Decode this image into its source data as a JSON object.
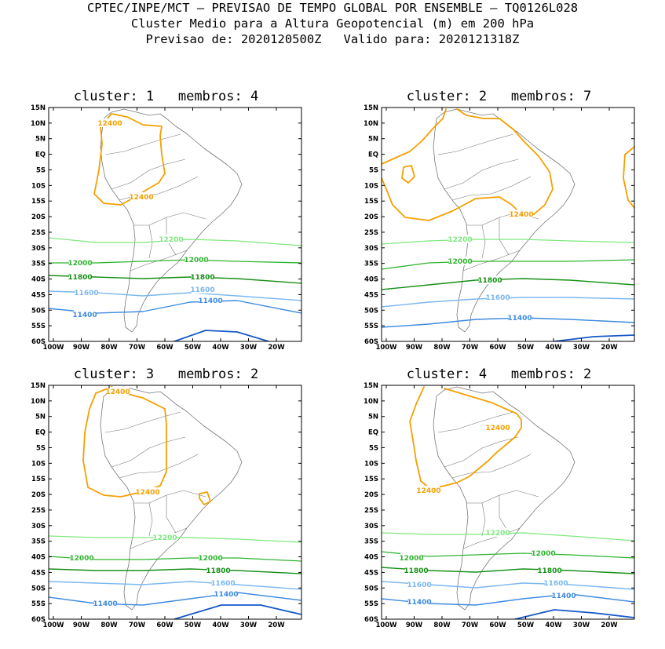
{
  "header": {
    "line1": "CPTEC/INPE/MCT — PREVISAO DE TEMPO GLOBAL POR ENSEMBLE — TQ0126L028",
    "line2": "Cluster Medio para a Altura Geopotencial (m) em 200 hPa",
    "line3": "Previsao de: 2020120500Z   Valido para: 2020121318Z"
  },
  "axes": {
    "lat_labels": [
      "15N",
      "10N",
      "5N",
      "EQ",
      "5S",
      "10S",
      "15S",
      "20S",
      "25S",
      "30S",
      "35S",
      "40S",
      "45S",
      "50S",
      "55S",
      "60S"
    ],
    "lon_labels": [
      "100W",
      "90W",
      "80W",
      "70W",
      "60W",
      "50W",
      "40W",
      "30W",
      "20W"
    ]
  },
  "colors": {
    "c12400": "#f5a000",
    "c12200": "#7ee87e",
    "c12000": "#2fb52f",
    "c11800": "#169016",
    "c11600": "#7ab7f0",
    "c11400": "#3c8ae0",
    "c11200": "#1658c8",
    "coast": "#777777"
  },
  "panels": [
    {
      "title": "cluster: 1   membros: 4",
      "labels": {
        "c12400": [
          "12400",
          "12400"
        ],
        "c12200": [
          "12200"
        ],
        "c12000": [
          "12000",
          "12000"
        ],
        "c11800": [
          "11800",
          "11800"
        ],
        "c11600": [
          "11600",
          "11600"
        ],
        "c11400": [
          "11400",
          "11400"
        ]
      }
    },
    {
      "title": "cluster: 2   membros: 7",
      "labels": {
        "c12400": [
          "12400"
        ],
        "c12200": [
          "12200"
        ],
        "c12000": [
          "12000"
        ],
        "c11800": [
          "11800"
        ],
        "c11600": [
          "11600"
        ],
        "c11400": [
          "11400"
        ]
      }
    },
    {
      "title": "cluster: 3   membros: 2",
      "labels": {
        "c12400": [
          "12400",
          "12400"
        ],
        "c12200": [
          "12200"
        ],
        "c12000": [
          "12000",
          "12000"
        ],
        "c11800": [
          "11800"
        ],
        "c11600": [
          "11600"
        ],
        "c11400": [
          "11400",
          "11400"
        ]
      }
    },
    {
      "title": "cluster: 4   membros: 2",
      "labels": {
        "c12400": [
          "12400",
          "12400"
        ],
        "c12200": [
          "12200"
        ],
        "c12000": [
          "12000",
          "12000"
        ],
        "c11800": [
          "11800",
          "11800"
        ],
        "c11600": [
          "11600",
          "11600"
        ],
        "c11400": [
          "11400",
          "11400"
        ]
      }
    }
  ]
}
